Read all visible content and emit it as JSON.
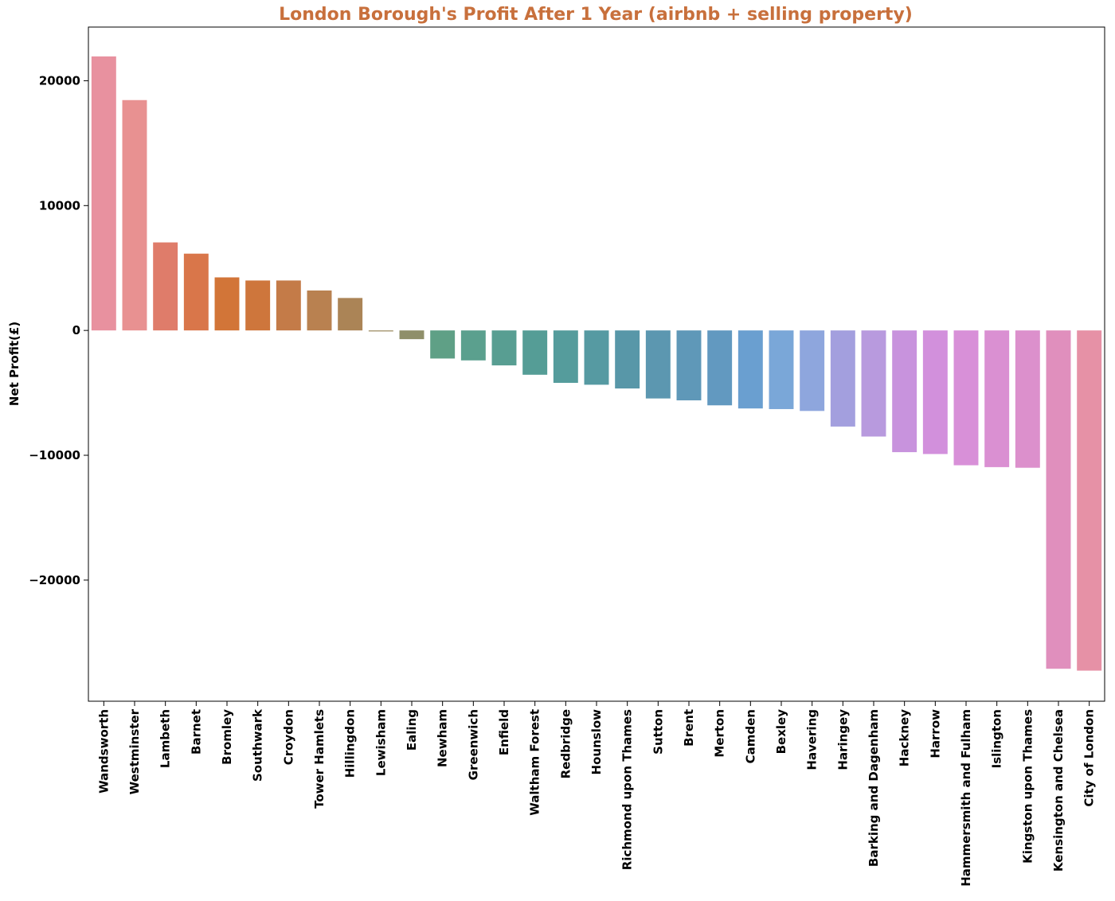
{
  "chart_data": {
    "type": "bar",
    "title": "London Borough's Profit After 1 Year (airbnb + selling property)",
    "title_color": "#c8703c",
    "xlabel": "",
    "ylabel": "Net Profit(£)",
    "ylim": [
      -29700,
      24300
    ],
    "yticks": [
      20000,
      10000,
      0,
      -10000,
      -20000
    ],
    "ytick_labels": [
      "20000",
      "10000",
      "0",
      "−10000",
      "−20000"
    ],
    "grid": false,
    "categories": [
      "Wandsworth",
      "Westminster",
      "Lambeth",
      "Barnet",
      "Bromley",
      "Southwark",
      "Croydon",
      "Tower Hamlets",
      "Hillingdon",
      "Lewisham",
      "Ealing",
      "Newham",
      "Greenwich",
      "Enfield",
      "Waltham Forest",
      "Redbridge",
      "Hounslow",
      "Richmond upon Thames",
      "Sutton",
      "Brent",
      "Merton",
      "Camden",
      "Bexley",
      "Havering",
      "Haringey",
      "Barking and Dagenham",
      "Hackney",
      "Harrow",
      "Hammersmith and Fulham",
      "Islington",
      "Kingston upon Thames",
      "Kensington and Chelsea",
      "City of London"
    ],
    "values": [
      21950,
      18450,
      7050,
      6150,
      4250,
      4000,
      4000,
      3200,
      2600,
      -80,
      -700,
      -2250,
      -2400,
      -2800,
      -3550,
      -4200,
      -4350,
      -4650,
      -5450,
      -5600,
      -6000,
      -6250,
      -6300,
      -6450,
      -7700,
      -8500,
      -9750,
      -9900,
      -10800,
      -10950,
      -11000,
      -27100,
      -27250
    ],
    "colors": [
      "#e8919f",
      "#e89191",
      "#df7c6a",
      "#d9764a",
      "#d27538",
      "#ce763c",
      "#c47b48",
      "#b98150",
      "#ab8456",
      "#9c8a60",
      "#8f8f6a",
      "#5fa086",
      "#5ba08e",
      "#589e92",
      "#559d96",
      "#559c9c",
      "#569aa2",
      "#5897a8",
      "#5c97b0",
      "#5f98b8",
      "#6299c0",
      "#6a9fd0",
      "#7aa7d8",
      "#8ea6dd",
      "#a39fde",
      "#b89ade",
      "#c893dd",
      "#d290dc",
      "#d890d8",
      "#da90d2",
      "#dc90cc",
      "#e08fbd",
      "#e691a6"
    ]
  }
}
